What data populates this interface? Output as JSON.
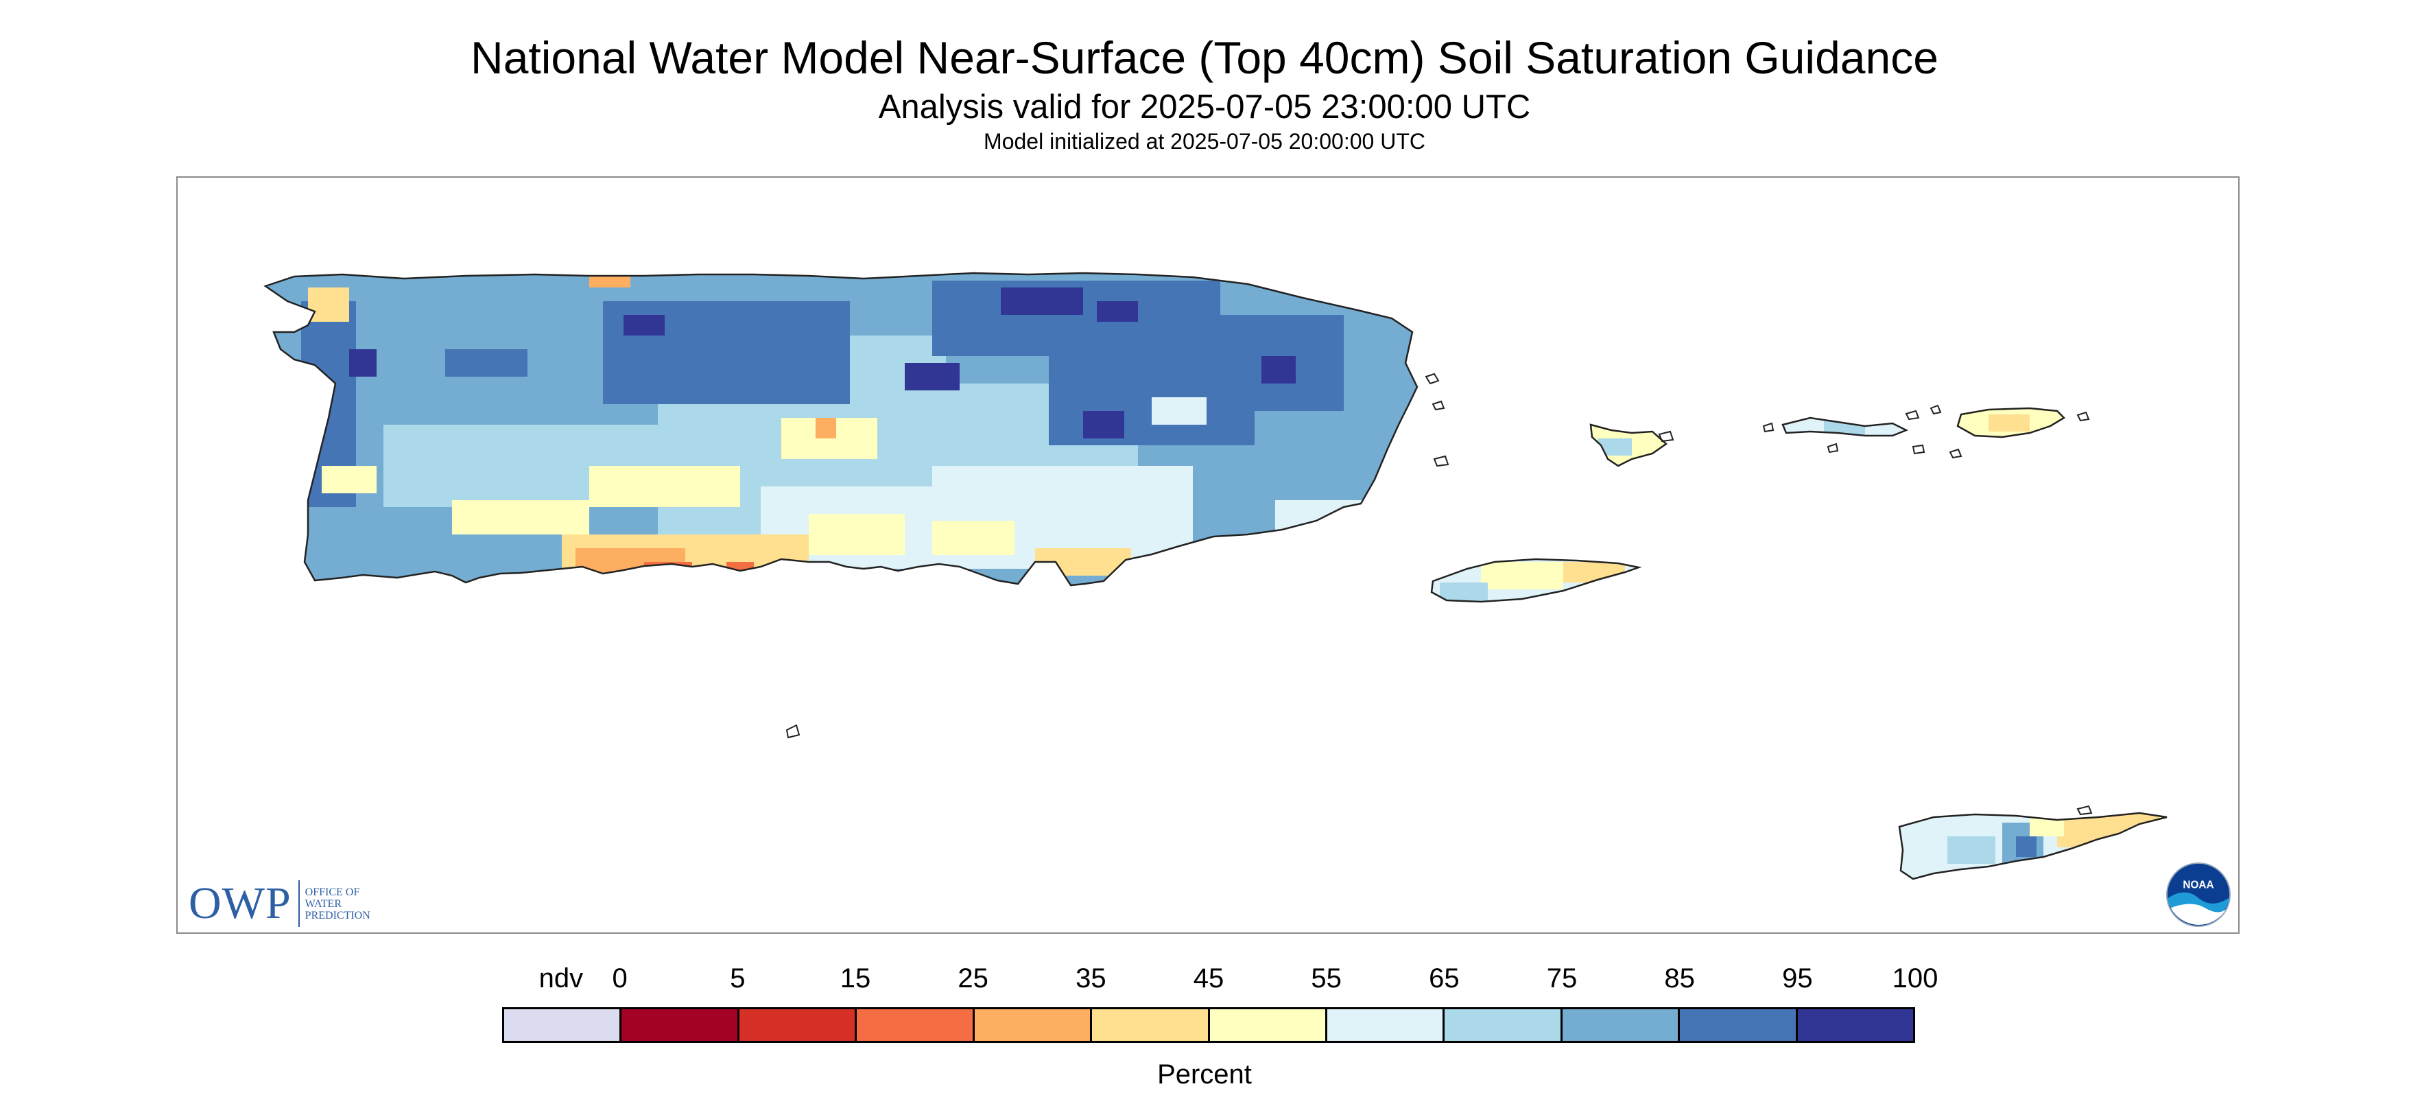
{
  "title": "National Water Model Near-Surface (Top 40cm) Soil Saturation Guidance",
  "subtitle": "Analysis valid for 2025-07-05 23:00:00 UTC",
  "init_line": "Model initialized at 2025-07-05 20:00:00 UTC",
  "logos": {
    "owp_mark": "OWP",
    "owp_text": [
      "OFFICE OF",
      "WATER",
      "PREDICTION"
    ],
    "noaa_text": "NOAA"
  },
  "legend": {
    "units": "Percent",
    "tick_labels": [
      "ndv",
      "0",
      "5",
      "15",
      "25",
      "35",
      "45",
      "55",
      "65",
      "75",
      "85",
      "95",
      "100"
    ],
    "bins": [
      {
        "label": "ndv",
        "color": "#dcdcf0"
      },
      {
        "label": "0-5",
        "color": "#a50026"
      },
      {
        "label": "5-15",
        "color": "#d73027"
      },
      {
        "label": "15-25",
        "color": "#f46d43"
      },
      {
        "label": "25-35",
        "color": "#fdae61"
      },
      {
        "label": "35-45",
        "color": "#fee090"
      },
      {
        "label": "45-55",
        "color": "#ffffbf"
      },
      {
        "label": "55-65",
        "color": "#e0f3f8"
      },
      {
        "label": "65-75",
        "color": "#abd9e9"
      },
      {
        "label": "75-85",
        "color": "#74add1"
      },
      {
        "label": "85-95",
        "color": "#4575b4"
      },
      {
        "label": "95-100",
        "color": "#313695"
      }
    ]
  }
}
